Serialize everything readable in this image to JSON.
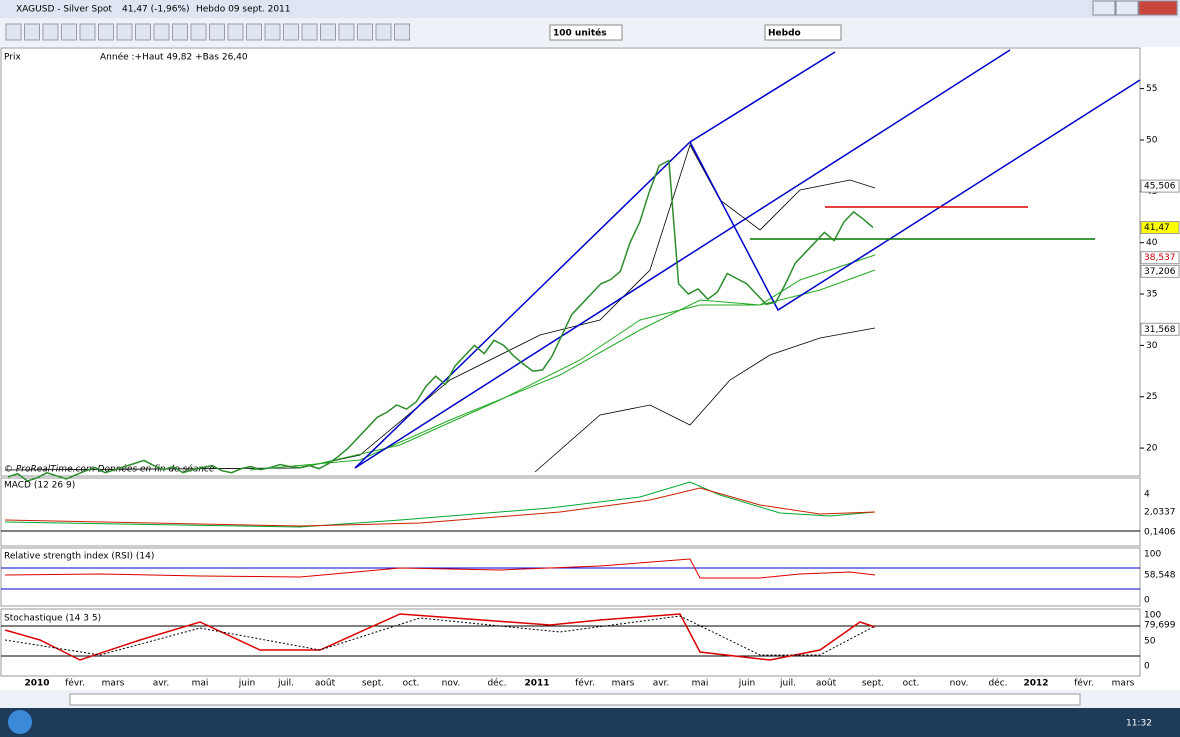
{
  "window": {
    "title": "XAGUSD - Silver Spot",
    "change": "41,47 (-1,96%)",
    "period": "Hebdo  09 sept. 2011"
  },
  "toolbar": {
    "units": "100 unités",
    "interval": "Hebdo"
  },
  "price_panel": {
    "label": "Prix",
    "info": "Année :+Haut 49,82 +Bas 26,40",
    "watermark": "© ProRealTime.com  Données en fin de séance",
    "type": "line",
    "ylim": [
      17.38,
      58.76
    ],
    "yticks": [
      20,
      25,
      30,
      35,
      40,
      45,
      50,
      55
    ],
    "markers": [
      {
        "value": 45.506,
        "label": "45,506"
      },
      {
        "value": 41.47,
        "label": "41,47"
      },
      {
        "value": 38.537,
        "label": "38,537"
      },
      {
        "value": 37.206,
        "label": "37,206"
      },
      {
        "value": 31.568,
        "label": "31,568"
      }
    ],
    "closes": [
      17.2,
      17.5,
      16.8,
      17.1,
      17.6,
      17.3,
      17.0,
      17.4,
      17.8,
      18.1,
      17.6,
      17.9,
      18.2,
      18.5,
      18.8,
      18.3,
      17.9,
      18.2,
      17.6,
      17.9,
      18.1,
      18.3,
      17.8,
      17.6,
      18.0,
      18.2,
      17.9,
      18.1,
      18.4,
      18.2,
      18.1,
      18.3,
      18.0,
      18.5,
      19.2,
      20.0,
      21.0,
      22.0,
      23.0,
      23.5,
      24.2,
      23.8,
      24.5,
      26.0,
      27.0,
      26.2,
      28.0,
      29.0,
      30.0,
      29.2,
      30.5,
      30.0,
      29.0,
      28.2,
      27.5,
      27.6,
      29.0,
      31.0,
      33.0,
      34.0,
      35.0,
      36.0,
      36.4,
      37.2,
      40.0,
      42.0,
      45.0,
      47.5,
      48.0,
      36.0,
      35.0,
      35.5,
      34.5,
      35.2,
      37.0,
      36.5,
      36.0,
      35.0,
      34.0,
      34.2,
      36.0,
      38.0,
      39.0,
      40.0,
      41.0,
      40.2,
      42.0,
      43.0,
      42.3,
      41.47
    ]
  },
  "macd_panel": {
    "label": "MACD (12 26 9)",
    "axis_top": "4",
    "value1": "2,0337",
    "value2": "0,1406"
  },
  "rsi_panel": {
    "label": "Relative strength index (RSI) (14)",
    "axis_top": "100",
    "value": "58,548",
    "axis_bottom": "0"
  },
  "stoch_panel": {
    "label": "Stochastique (14 3 5)",
    "axis_top": "100",
    "value": "79,699",
    "axis_mid": "50",
    "axis_bottom": "0"
  },
  "time_axis": [
    "2010",
    "févr.",
    "mars",
    "avr.",
    "mai",
    "juin",
    "juil.",
    "août",
    "sept.",
    "oct.",
    "nov.",
    "déc.",
    "2011",
    "févr.",
    "mars",
    "avr.",
    "mai",
    "juin",
    "juil.",
    "août",
    "sept.",
    "oct.",
    "nov.",
    "déc.",
    "2012",
    "févr.",
    "mars"
  ],
  "taskbar": {
    "clock": "11:32"
  }
}
